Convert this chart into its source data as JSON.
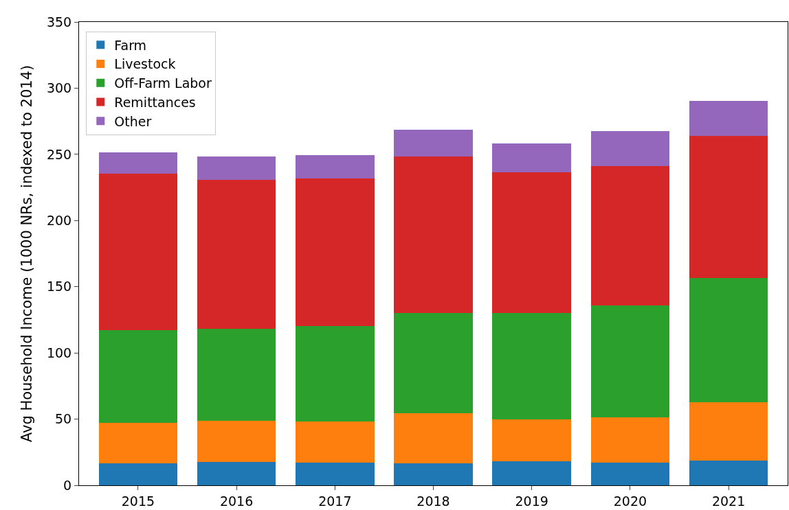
{
  "chart_data": {
    "type": "bar",
    "stacked": true,
    "ylabel": "Avg Household Income (1000 NRs, indexed to 2014)",
    "categories": [
      "2015",
      "2016",
      "2017",
      "2018",
      "2019",
      "2020",
      "2021"
    ],
    "series": [
      {
        "name": "Farm",
        "color": "#1f77b4",
        "values": [
          16.6,
          17.5,
          17.3,
          16.6,
          18.1,
          17.3,
          18.8
        ]
      },
      {
        "name": "Livestock",
        "color": "#ff7f0e",
        "values": [
          30.6,
          31.2,
          30.8,
          37.8,
          31.5,
          33.9,
          43.7
        ]
      },
      {
        "name": "Off-Farm Labor",
        "color": "#2ca02c",
        "values": [
          70.0,
          69.4,
          72.4,
          75.7,
          80.5,
          84.4,
          94.1
        ]
      },
      {
        "name": "Remittances",
        "color": "#d62728",
        "values": [
          118.2,
          112.6,
          111.1,
          118.4,
          106.1,
          105.6,
          107.2
        ]
      },
      {
        "name": "Other",
        "color": "#9467bd",
        "values": [
          16.1,
          17.7,
          17.6,
          19.9,
          21.9,
          26.5,
          26.5
        ]
      }
    ],
    "ylim": [
      0,
      350
    ],
    "yticks": [
      0,
      50,
      100,
      150,
      200,
      250,
      300,
      350
    ],
    "legend": "top left"
  }
}
